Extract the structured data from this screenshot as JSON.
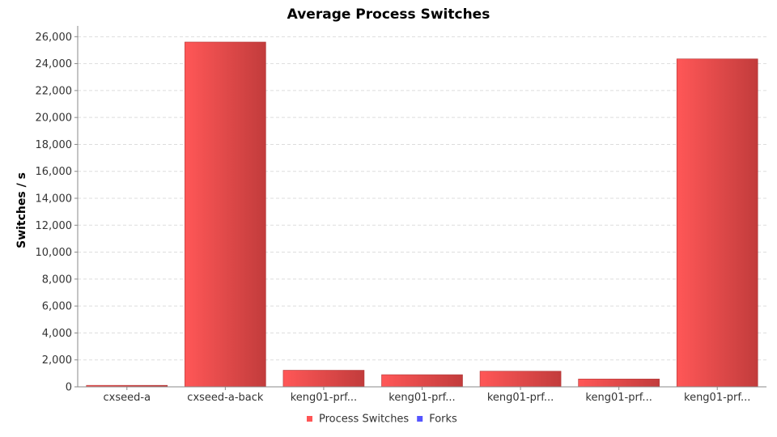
{
  "chart_data": {
    "type": "bar",
    "title": "Average Process Switches",
    "ylabel": "Switches / s",
    "xlabel": "",
    "ylim": [
      0,
      26800
    ],
    "yticks": [
      0,
      2000,
      4000,
      6000,
      8000,
      10000,
      12000,
      14000,
      16000,
      18000,
      20000,
      22000,
      24000,
      26000
    ],
    "ytick_labels": [
      "0",
      "2,000",
      "4,000",
      "6,000",
      "8,000",
      "10,000",
      "12,000",
      "14,000",
      "16,000",
      "18,000",
      "20,000",
      "22,000",
      "24,000",
      "26,000"
    ],
    "grid": true,
    "legend_position": "bottom",
    "categories": [
      "cxseed-a",
      "cxseed-a-back",
      "keng01-prf...",
      "keng01-prf...",
      "keng01-prf...",
      "keng01-prf...",
      "keng01-prf..."
    ],
    "series": [
      {
        "name": "Process Switches",
        "color": "#ff5555",
        "values": [
          110,
          25600,
          1230,
          900,
          1160,
          580,
          24350
        ]
      },
      {
        "name": "Forks",
        "color": "#5555ff",
        "values": [
          0,
          0,
          0,
          0,
          0,
          0,
          0
        ]
      }
    ]
  }
}
